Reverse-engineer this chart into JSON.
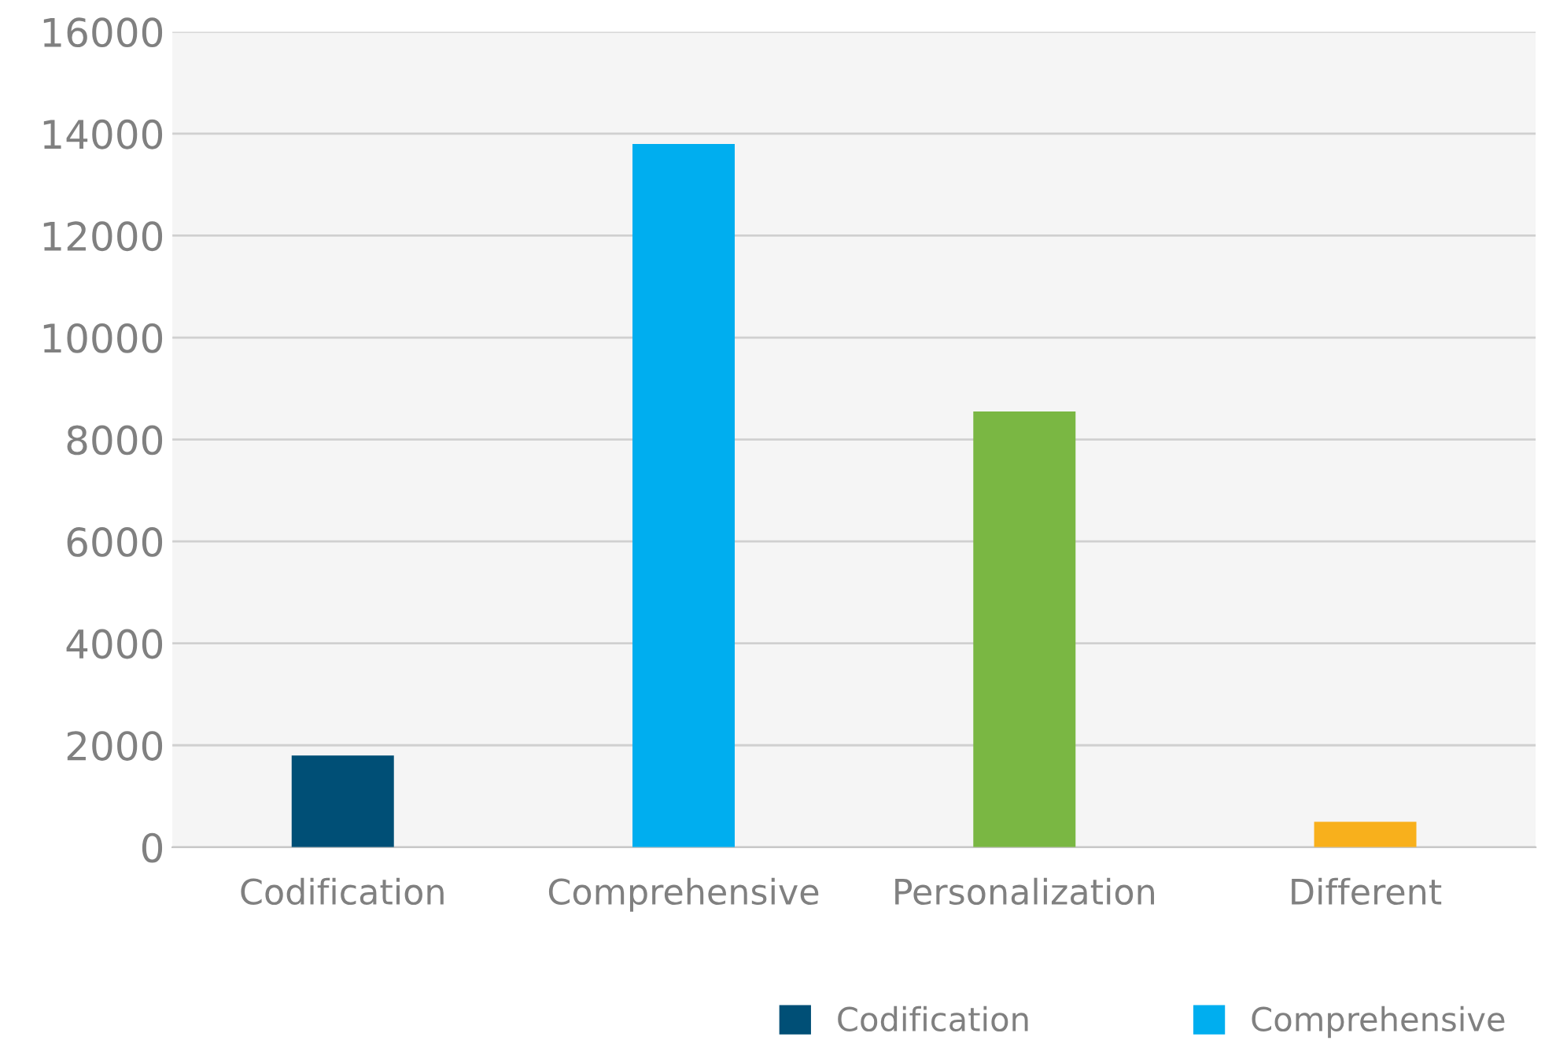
{
  "chart_data": {
    "type": "bar",
    "categories": [
      "Codification",
      "Comprehensive",
      "Personalization",
      "Different"
    ],
    "series": [
      {
        "name": "Codification",
        "color": "#004f76",
        "values": [
          1800,
          null,
          null,
          null
        ]
      },
      {
        "name": "Comprehensive",
        "color": "#00aeef",
        "values": [
          null,
          13800,
          null,
          null
        ]
      },
      {
        "color": "#7ab743",
        "values": [
          null,
          null,
          8550,
          null
        ]
      },
      {
        "color": "#f8b01c",
        "values": [
          null,
          null,
          null,
          500
        ]
      }
    ],
    "ylim": [
      0,
      16000
    ],
    "yticks": [
      0,
      2000,
      4000,
      6000,
      8000,
      10000,
      12000,
      14000,
      16000
    ],
    "grid": "y",
    "legend": "bottom right"
  }
}
